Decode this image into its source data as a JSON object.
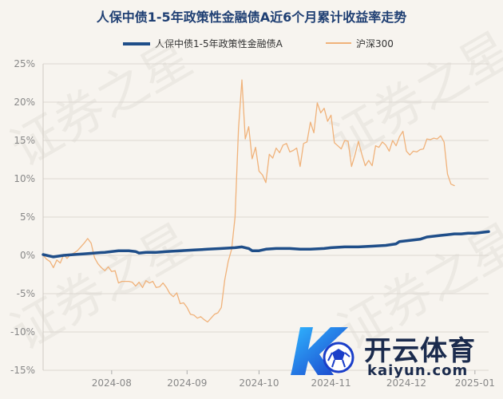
{
  "chart_data": {
    "type": "line",
    "title": "人保中债1-5年政策性金融债A近6个月累计收益率走势",
    "y_axis": {
      "min": -15,
      "max": 25,
      "step": 5,
      "tick_labels": [
        "25%",
        "20%",
        "15%",
        "10%",
        "5%",
        "0%",
        "-5%",
        "-10%",
        "-15%"
      ]
    },
    "x_axis": {
      "tick_labels": [
        "2024-08",
        "2024-09",
        "2024-10",
        "2024-11",
        "2024-12",
        "2025-01"
      ],
      "tick_positions": [
        20,
        42,
        63,
        84,
        106,
        126
      ],
      "n_points": 131
    },
    "grid": "horizontal",
    "legend": "top-center",
    "series": [
      {
        "name": "人保中债1-5年政策性金融债A",
        "color": "#1f4e89",
        "points": [
          [
            0,
            0.1
          ],
          [
            3,
            -0.2
          ],
          [
            6,
            0.0
          ],
          [
            9,
            0.1
          ],
          [
            12,
            0.2
          ],
          [
            15,
            0.3
          ],
          [
            18,
            0.4
          ],
          [
            20,
            0.5
          ],
          [
            22,
            0.6
          ],
          [
            25,
            0.6
          ],
          [
            27,
            0.5
          ],
          [
            28,
            0.3
          ],
          [
            30,
            0.4
          ],
          [
            33,
            0.4
          ],
          [
            36,
            0.5
          ],
          [
            40,
            0.6
          ],
          [
            44,
            0.7
          ],
          [
            48,
            0.8
          ],
          [
            52,
            0.9
          ],
          [
            56,
            1.0
          ],
          [
            58,
            1.1
          ],
          [
            60,
            0.9
          ],
          [
            61,
            0.6
          ],
          [
            63,
            0.6
          ],
          [
            65,
            0.8
          ],
          [
            68,
            0.9
          ],
          [
            72,
            0.9
          ],
          [
            75,
            0.8
          ],
          [
            78,
            0.8
          ],
          [
            82,
            0.9
          ],
          [
            84,
            1.0
          ],
          [
            88,
            1.1
          ],
          [
            92,
            1.1
          ],
          [
            96,
            1.2
          ],
          [
            100,
            1.3
          ],
          [
            103,
            1.5
          ],
          [
            104,
            1.8
          ],
          [
            106,
            1.9
          ],
          [
            108,
            2.0
          ],
          [
            110,
            2.1
          ],
          [
            112,
            2.4
          ],
          [
            114,
            2.5
          ],
          [
            116,
            2.6
          ],
          [
            118,
            2.7
          ],
          [
            120,
            2.8
          ],
          [
            122,
            2.8
          ],
          [
            124,
            2.9
          ],
          [
            126,
            2.9
          ],
          [
            128,
            3.0
          ],
          [
            130,
            3.1
          ]
        ]
      },
      {
        "name": "沪深300",
        "color": "#f0b27a",
        "points": [
          [
            0,
            0.0
          ],
          [
            1,
            -0.5
          ],
          [
            2,
            -0.8
          ],
          [
            3,
            -1.6
          ],
          [
            4,
            -0.6
          ],
          [
            5,
            -1.0
          ],
          [
            6,
            0.1
          ],
          [
            7,
            -0.4
          ],
          [
            8,
            0.1
          ],
          [
            9,
            0.3
          ],
          [
            10,
            0.6
          ],
          [
            11,
            1.1
          ],
          [
            12,
            1.6
          ],
          [
            13,
            2.2
          ],
          [
            14,
            1.6
          ],
          [
            15,
            -0.3
          ],
          [
            16,
            -1.1
          ],
          [
            17,
            -1.6
          ],
          [
            18,
            -2.0
          ],
          [
            19,
            -1.5
          ],
          [
            20,
            -2.1
          ],
          [
            21,
            -2.0
          ],
          [
            22,
            -3.6
          ],
          [
            23,
            -3.4
          ],
          [
            24,
            -3.4
          ],
          [
            25,
            -3.4
          ],
          [
            26,
            -3.5
          ],
          [
            27,
            -4.0
          ],
          [
            28,
            -3.5
          ],
          [
            29,
            -4.2
          ],
          [
            30,
            -3.3
          ],
          [
            31,
            -3.6
          ],
          [
            32,
            -3.4
          ],
          [
            33,
            -4.2
          ],
          [
            34,
            -4.1
          ],
          [
            35,
            -3.6
          ],
          [
            36,
            -4.2
          ],
          [
            37,
            -5.0
          ],
          [
            38,
            -5.4
          ],
          [
            39,
            -4.9
          ],
          [
            40,
            -6.3
          ],
          [
            41,
            -6.2
          ],
          [
            42,
            -6.8
          ],
          [
            43,
            -7.7
          ],
          [
            44,
            -7.8
          ],
          [
            45,
            -8.2
          ],
          [
            46,
            -8.0
          ],
          [
            47,
            -8.4
          ],
          [
            48,
            -8.7
          ],
          [
            49,
            -8.2
          ],
          [
            50,
            -7.7
          ],
          [
            51,
            -7.5
          ],
          [
            52,
            -6.8
          ],
          [
            53,
            -3.2
          ],
          [
            54,
            -0.8
          ],
          [
            55,
            0.8
          ],
          [
            56,
            5.0
          ],
          [
            57,
            16.5
          ],
          [
            58,
            22.9
          ],
          [
            59,
            15.2
          ],
          [
            60,
            16.8
          ],
          [
            61,
            12.6
          ],
          [
            62,
            14.1
          ],
          [
            63,
            11.0
          ],
          [
            64,
            10.5
          ],
          [
            65,
            9.5
          ],
          [
            66,
            13.2
          ],
          [
            67,
            12.7
          ],
          [
            68,
            14.0
          ],
          [
            69,
            13.4
          ],
          [
            70,
            14.4
          ],
          [
            71,
            14.6
          ],
          [
            72,
            13.5
          ],
          [
            73,
            13.7
          ],
          [
            74,
            14.0
          ],
          [
            75,
            11.6
          ],
          [
            76,
            14.6
          ],
          [
            77,
            14.8
          ],
          [
            78,
            17.4
          ],
          [
            79,
            16.0
          ],
          [
            80,
            19.9
          ],
          [
            81,
            18.6
          ],
          [
            82,
            19.2
          ],
          [
            83,
            17.5
          ],
          [
            84,
            18.3
          ],
          [
            85,
            14.7
          ],
          [
            86,
            14.3
          ],
          [
            87,
            13.9
          ],
          [
            88,
            15.0
          ],
          [
            89,
            14.9
          ],
          [
            90,
            11.6
          ],
          [
            91,
            13.1
          ],
          [
            92,
            14.9
          ],
          [
            93,
            13.2
          ],
          [
            94,
            11.7
          ],
          [
            95,
            12.4
          ],
          [
            96,
            11.7
          ],
          [
            97,
            14.3
          ],
          [
            98,
            14.1
          ],
          [
            99,
            14.8
          ],
          [
            100,
            14.4
          ],
          [
            101,
            13.6
          ],
          [
            102,
            15.0
          ],
          [
            103,
            14.3
          ],
          [
            104,
            15.5
          ],
          [
            105,
            16.2
          ],
          [
            106,
            13.6
          ],
          [
            107,
            13.1
          ],
          [
            108,
            13.6
          ],
          [
            109,
            13.5
          ],
          [
            110,
            13.8
          ],
          [
            111,
            13.9
          ],
          [
            112,
            15.2
          ],
          [
            113,
            15.1
          ],
          [
            114,
            15.3
          ],
          [
            115,
            15.2
          ],
          [
            116,
            15.6
          ],
          [
            117,
            14.8
          ],
          [
            118,
            10.6
          ],
          [
            119,
            9.3
          ],
          [
            120,
            9.1
          ]
        ]
      }
    ]
  },
  "watermark": "证券之星",
  "brand": {
    "name_cn": "开云体育",
    "name_en": "kaiyun.com"
  }
}
